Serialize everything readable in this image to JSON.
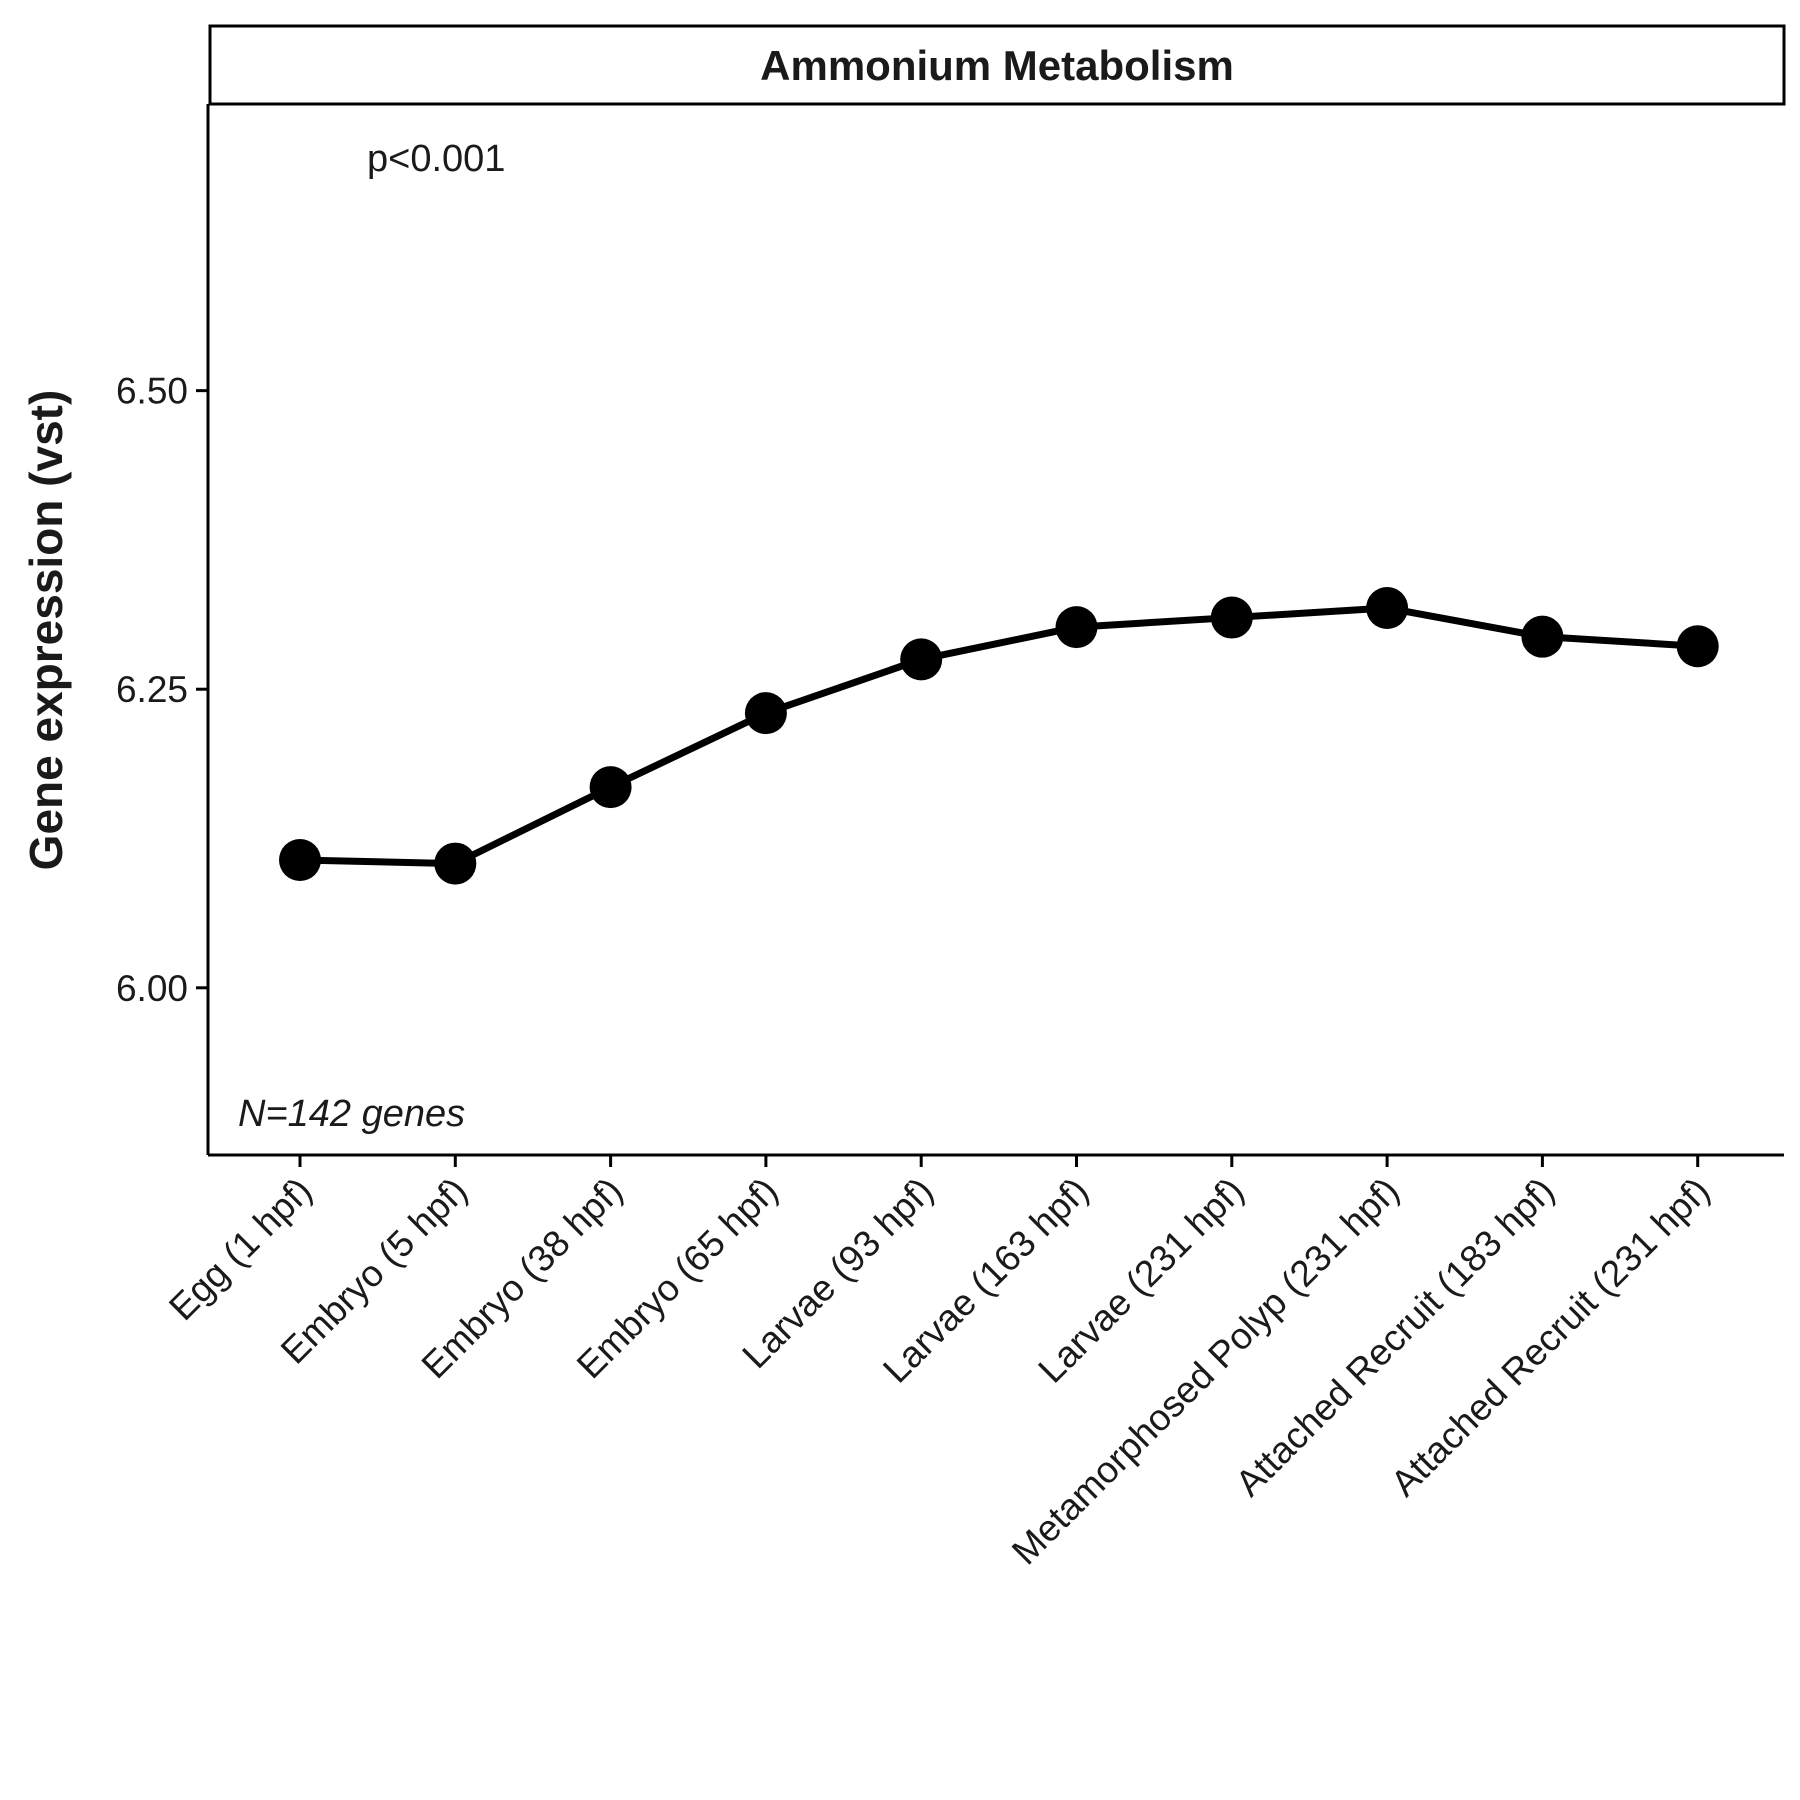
{
  "colors": {
    "line": "#000000",
    "point": "#000000",
    "text": "#1a1a1a",
    "background": "#ffffff"
  },
  "chart_data": {
    "type": "line",
    "title": "Ammonium Metabolism",
    "xlabel": "",
    "ylabel": "Gene expression (vst)",
    "ylim": [
      5.86,
      6.74
    ],
    "yticks": [
      "6.00",
      "6.25",
      "6.50"
    ],
    "ytick_values": [
      6.0,
      6.25,
      6.5
    ],
    "grid": false,
    "legend": "none",
    "categories": [
      "Egg (1 hpf)",
      "Embryo (5 hpf)",
      "Embryo (38 hpf)",
      "Embryo (65 hpf)",
      "Larvae (93 hpf)",
      "Larvae (163 hpf)",
      "Larvae (231 hpf)",
      "Metamorphosed Polyp (231 hpf)",
      "Attached Recruit (183 hpf)",
      "Attached Recruit (231 hpf)"
    ],
    "series": [
      {
        "values": [
          6.107,
          6.104,
          6.168,
          6.23,
          6.275,
          6.302,
          6.31,
          6.318,
          6.294,
          6.286
        ]
      }
    ],
    "annotations": {
      "pvalue": "p<0.001",
      "n_genes": "N=142 genes"
    }
  }
}
